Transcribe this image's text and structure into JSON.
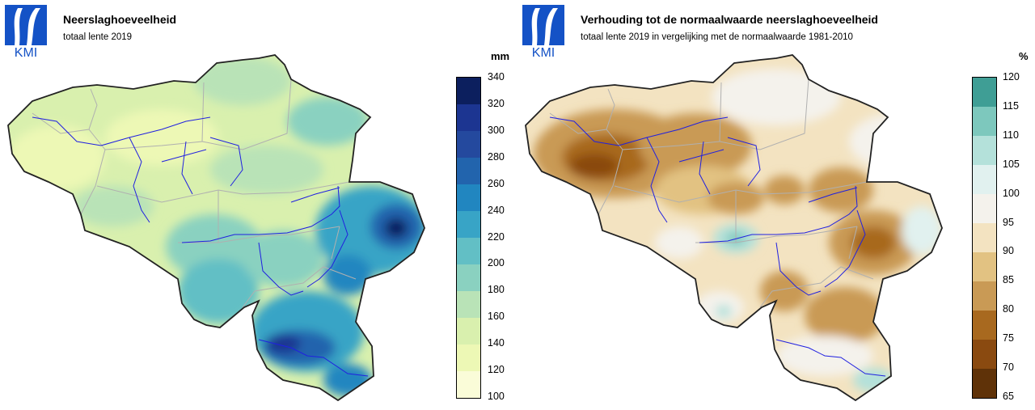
{
  "left_panel": {
    "logo_text": "KMI",
    "title": "Neerslaghoeveelheid",
    "subtitle": "totaal lente 2019",
    "unit": "mm",
    "legend_ticks": [
      "340",
      "320",
      "300",
      "280",
      "260",
      "240",
      "220",
      "200",
      "180",
      "160",
      "140",
      "120",
      "100"
    ],
    "legend_colors": [
      "#0c1f5e",
      "#1c3591",
      "#24499e",
      "#2264ad",
      "#2186c0",
      "#38a4c6",
      "#62bfc5",
      "#8ad1c0",
      "#b9e3b7",
      "#d9f0ae",
      "#edf8b5",
      "#fafcd8"
    ]
  },
  "right_panel": {
    "logo_text": "KMI",
    "title": "Verhouding tot de normaalwaarde neerslaghoeveelheid",
    "subtitle": "totaal lente 2019 in vergelijking met de normaalwaarde 1981-2010",
    "unit": "%",
    "legend_ticks": [
      "120",
      "115",
      "110",
      "105",
      "100",
      "95",
      "90",
      "85",
      "80",
      "75",
      "70",
      "65"
    ],
    "legend_colors": [
      "#3f9e95",
      "#7dc8bd",
      "#b4e1da",
      "#e1f1ef",
      "#f4f2ec",
      "#f3e3c1",
      "#e2c282",
      "#c99a55",
      "#a8691f",
      "#8a4a10",
      "#5f3208"
    ]
  },
  "icons": {
    "logo": "kmi-logo-icon",
    "rivers": "river-lines",
    "borders": "border-lines"
  }
}
